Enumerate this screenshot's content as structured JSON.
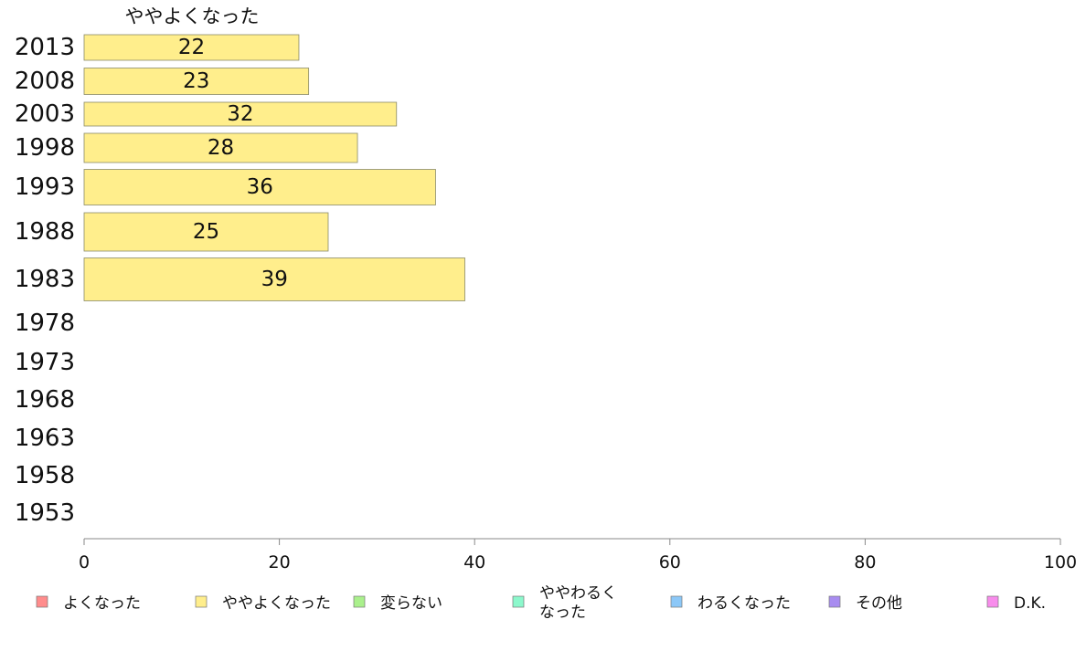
{
  "chart_data": {
    "type": "bar",
    "orientation": "horizontal",
    "title": "ややよくなった",
    "categories": [
      "2013",
      "2008",
      "2003",
      "1998",
      "1993",
      "1988",
      "1983",
      "1978",
      "1973",
      "1968",
      "1963",
      "1958",
      "1953"
    ],
    "series": [
      {
        "name": "ややよくなった",
        "color": "#FFEE8C",
        "values": [
          22,
          23,
          32,
          28,
          36,
          25,
          39,
          null,
          null,
          null,
          null,
          null,
          null
        ],
        "labels": [
          "22",
          "23",
          "32",
          "28",
          "36",
          "25",
          "39",
          "",
          "",
          "",
          "",
          "",
          ""
        ]
      }
    ],
    "xlim": [
      0,
      100
    ],
    "xticks": [
      "0",
      "20",
      "40",
      "60",
      "80",
      "100"
    ],
    "grid": false,
    "legend": {
      "placement": "bottom",
      "items": [
        {
          "label": "よくなった",
          "color": "#FF8C8C"
        },
        {
          "label": "ややよくなった",
          "color": "#FFEE8C"
        },
        {
          "label": "変らない",
          "color": "#AAF08C"
        },
        {
          "label": "ややわるく\nなった",
          "color": "#8CF8CC"
        },
        {
          "label": "わるくなった",
          "color": "#8CC8F8"
        },
        {
          "label": "その他",
          "color": "#A88CF0"
        },
        {
          "label": "D.K.",
          "color": "#F88CEC"
        }
      ]
    }
  }
}
